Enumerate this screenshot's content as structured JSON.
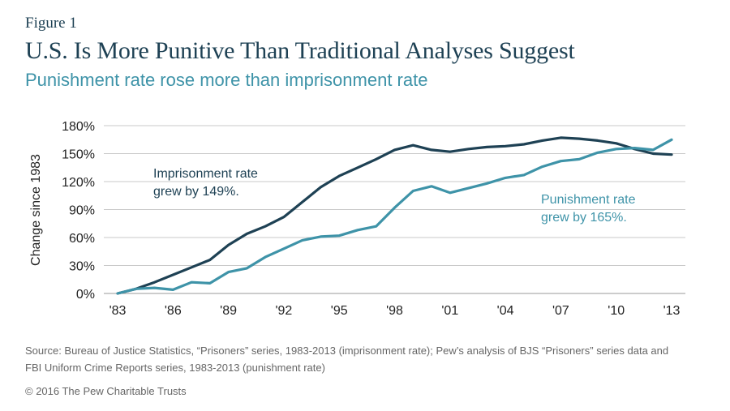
{
  "header": {
    "figure_label": "Figure 1",
    "title": "U.S. Is More Punitive Than Traditional Analyses Suggest",
    "subtitle": "Punishment rate rose more than imprisonment rate"
  },
  "chart_data": {
    "type": "line",
    "ylabel": "Change since 1983",
    "ylim": [
      0,
      180
    ],
    "yticks": [
      0,
      30,
      60,
      90,
      120,
      150,
      180
    ],
    "ytick_labels": [
      "0%",
      "30%",
      "60%",
      "90%",
      "120%",
      "150%",
      "180%"
    ],
    "xlim": [
      1983,
      2013
    ],
    "xticks": [
      1983,
      1986,
      1989,
      1992,
      1995,
      1998,
      2001,
      2004,
      2007,
      2010,
      2013
    ],
    "xtick_labels": [
      "'83",
      "'86",
      "'89",
      "'92",
      "'95",
      "'98",
      "'01",
      "'04",
      "'07",
      "'10",
      "'13"
    ],
    "grid": true,
    "x": [
      1983,
      1984,
      1985,
      1986,
      1987,
      1988,
      1989,
      1990,
      1991,
      1992,
      1993,
      1994,
      1995,
      1996,
      1997,
      1998,
      1999,
      2000,
      2001,
      2002,
      2003,
      2004,
      2005,
      2006,
      2007,
      2008,
      2009,
      2010,
      2011,
      2012,
      2013
    ],
    "series": [
      {
        "color": "#1e4154",
        "values": [
          0,
          5,
          12,
          20,
          28,
          36,
          52,
          64,
          72,
          82,
          98,
          114,
          126,
          135,
          144,
          154,
          159,
          154,
          152,
          155,
          157,
          158,
          160,
          164,
          167,
          166,
          164,
          161,
          155,
          150,
          149
        ],
        "annotation": [
          "Imprisonment rate",
          "grew by 149%."
        ]
      },
      {
        "color": "#3e93a8",
        "values": [
          0,
          5,
          6,
          4,
          12,
          11,
          23,
          27,
          39,
          48,
          57,
          61,
          62,
          68,
          72,
          92,
          110,
          115,
          108,
          113,
          118,
          124,
          127,
          136,
          142,
          144,
          151,
          155,
          156,
          154,
          165
        ],
        "annotation": [
          "Punishment rate",
          "grew by 165%."
        ]
      }
    ]
  },
  "footer": {
    "source": "Source: Bureau of Justice Statistics, “Prisoners” series, 1983-2013 (imprisonment rate); Pew’s analysis of BJS “Prisoners” series data and FBI Uniform Crime Reports series, 1983-2013 (punishment rate)",
    "copyright": "© 2016 The Pew Charitable Trusts"
  }
}
